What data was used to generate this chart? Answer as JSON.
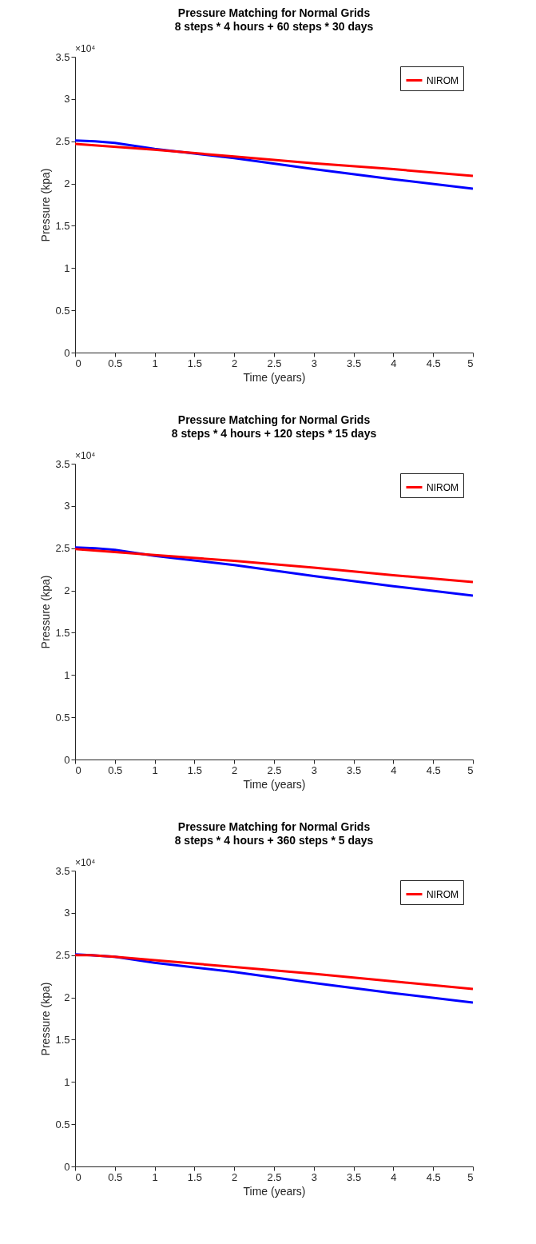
{
  "chart_data": [
    {
      "type": "line",
      "title": "Pressure Matching for Normal Grids",
      "subtitle": "8 steps * 4 hours + 60 steps * 30 days",
      "xlabel": "Time (years)",
      "ylabel": "Pressure (kpa)",
      "annotations": [
        "×10⁴"
      ],
      "xlim": [
        0,
        5
      ],
      "xticks": [
        0,
        0.5,
        1,
        1.5,
        2,
        2.5,
        3,
        3.5,
        4,
        4.5,
        5
      ],
      "ylim": [
        0,
        3.5
      ],
      "yticks": [
        0,
        0.5,
        1,
        1.5,
        2,
        2.5,
        3,
        3.5
      ],
      "grid": false,
      "legend": "top right",
      "marker": "none",
      "line_style": "solid",
      "series": [
        {
          "color": "#0000ff",
          "x": [
            0,
            0.25,
            0.5,
            1,
            2,
            3,
            4,
            5
          ],
          "values": [
            2.51,
            2.5,
            2.48,
            2.41,
            2.3,
            2.17,
            2.05,
            1.94
          ]
        },
        {
          "name": "NIROM",
          "color": "#ff0000",
          "x": [
            0,
            1,
            2,
            3,
            4,
            5
          ],
          "values": [
            2.47,
            2.4,
            2.32,
            2.24,
            2.17,
            2.09
          ]
        }
      ]
    },
    {
      "type": "line",
      "title": "Pressure Matching for Normal Grids",
      "subtitle": "8 steps * 4 hours + 120 steps * 15 days",
      "xlabel": "Time (years)",
      "ylabel": "Pressure (kpa)",
      "annotations": [
        "×10⁴"
      ],
      "xlim": [
        0,
        5
      ],
      "xticks": [
        0,
        0.5,
        1,
        1.5,
        2,
        2.5,
        3,
        3.5,
        4,
        4.5,
        5
      ],
      "ylim": [
        0,
        3.5
      ],
      "yticks": [
        0,
        0.5,
        1,
        1.5,
        2,
        2.5,
        3,
        3.5
      ],
      "grid": false,
      "legend": "top right",
      "marker": "none",
      "line_style": "solid",
      "series": [
        {
          "color": "#0000ff",
          "x": [
            0,
            0.25,
            0.5,
            1,
            2,
            3,
            4,
            5
          ],
          "values": [
            2.51,
            2.5,
            2.48,
            2.41,
            2.3,
            2.17,
            2.05,
            1.94
          ]
        },
        {
          "name": "NIROM",
          "color": "#ff0000",
          "x": [
            0,
            1,
            2,
            3,
            4,
            5
          ],
          "values": [
            2.49,
            2.42,
            2.35,
            2.27,
            2.18,
            2.1
          ]
        }
      ]
    },
    {
      "type": "line",
      "title": "Pressure Matching for Normal Grids",
      "subtitle": "8 steps * 4 hours + 360 steps * 5 days",
      "xlabel": "Time (years)",
      "ylabel": "Pressure (kpa)",
      "annotations": [
        "×10⁴"
      ],
      "xlim": [
        0,
        5
      ],
      "xticks": [
        0,
        0.5,
        1,
        1.5,
        2,
        2.5,
        3,
        3.5,
        4,
        4.5,
        5
      ],
      "ylim": [
        0,
        3.5
      ],
      "yticks": [
        0,
        0.5,
        1,
        1.5,
        2,
        2.5,
        3,
        3.5
      ],
      "grid": false,
      "legend": "top right",
      "marker": "none",
      "line_style": "solid",
      "series": [
        {
          "color": "#0000ff",
          "x": [
            0,
            0.2,
            0.5,
            1,
            2,
            3,
            4,
            5
          ],
          "values": [
            2.51,
            2.5,
            2.48,
            2.41,
            2.3,
            2.17,
            2.05,
            1.94
          ]
        },
        {
          "name": "NIROM",
          "color": "#ff0000",
          "x": [
            0,
            0.2,
            0.5,
            1,
            2,
            3,
            4,
            5
          ],
          "values": [
            2.5,
            2.5,
            2.48,
            2.44,
            2.36,
            2.28,
            2.19,
            2.1
          ]
        }
      ]
    }
  ]
}
